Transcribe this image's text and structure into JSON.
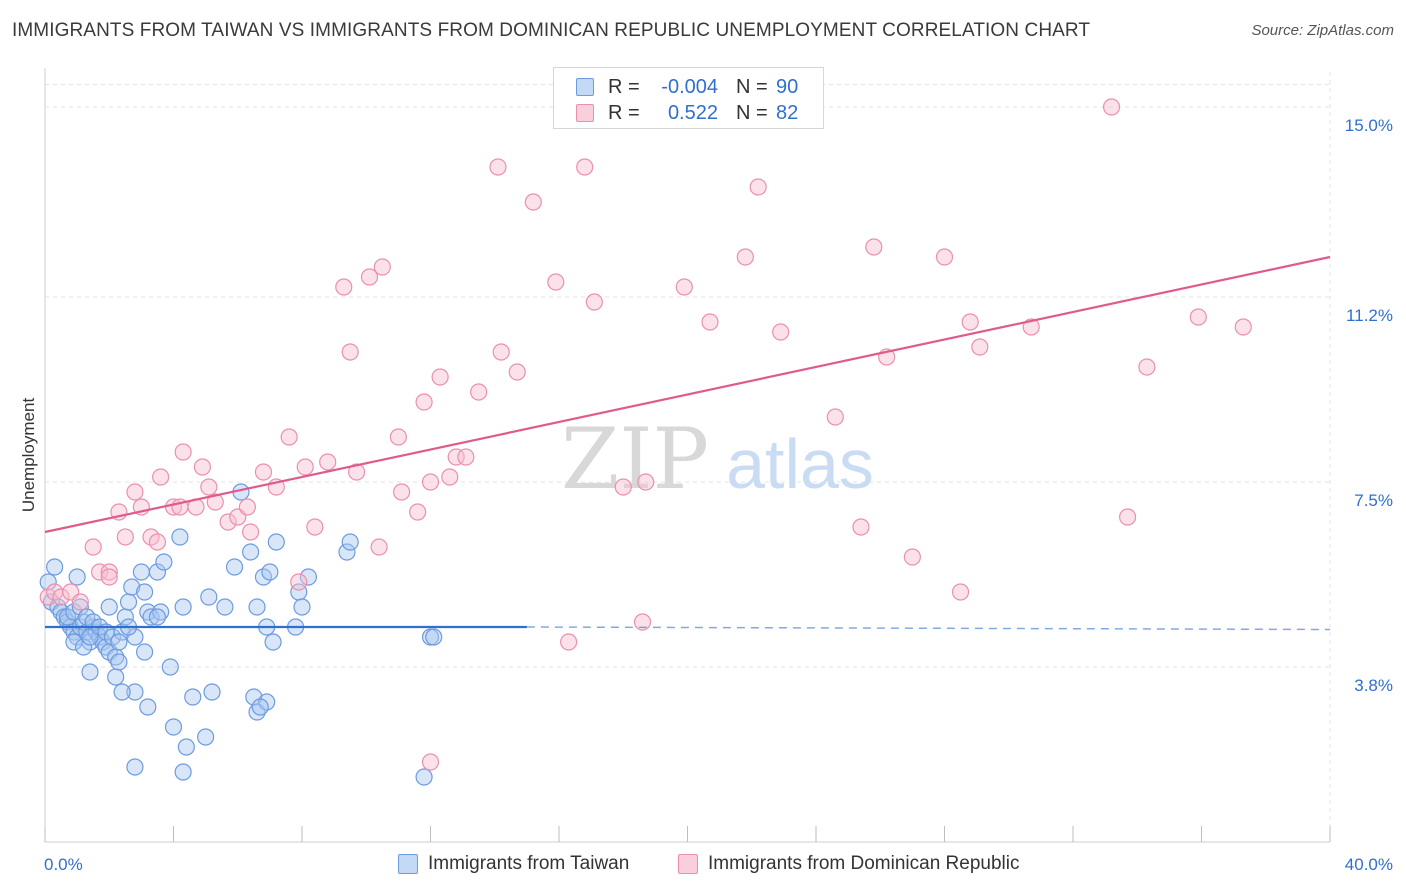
{
  "header": {
    "title": "IMMIGRANTS FROM TAIWAN VS IMMIGRANTS FROM DOMINICAN REPUBLIC UNEMPLOYMENT CORRELATION CHART",
    "source": "Source: ZipAtlas.com"
  },
  "watermark": {
    "zip": "ZIP",
    "atlas": "atlas"
  },
  "legend": {
    "rows": [
      {
        "r_label": "R =",
        "r_value": "-0.004",
        "n_label": "N =",
        "n_value": "90"
      },
      {
        "r_label": "R =",
        "r_value": "0.522",
        "n_label": "N =",
        "n_value": "82"
      }
    ]
  },
  "colors": {
    "taiwan_fill": "#a9c8f0",
    "taiwan_stroke": "#6c9be0",
    "taiwan_line": "#2f6fd0",
    "dr_fill": "#f6bfd0",
    "dr_stroke": "#eb8fae",
    "dr_line": "#e05a8d",
    "tick_label": "#2f6fd0",
    "grid": "#e3e3e3"
  },
  "chart_data": {
    "type": "scatter",
    "title": "IMMIGRANTS FROM TAIWAN VS IMMIGRANTS FROM DOMINICAN REPUBLIC UNEMPLOYMENT CORRELATION CHART",
    "xlabel": "",
    "ylabel": "Unemployment",
    "xlim": [
      0,
      40
    ],
    "ylim": [
      0.3,
      15.7
    ],
    "x_tick_labels": [
      "0.0%",
      "40.0%"
    ],
    "y_ticks": [
      3.8,
      7.5,
      11.2,
      15.0
    ],
    "y_tick_labels": [
      "3.8%",
      "7.5%",
      "11.2%",
      "15.0%"
    ],
    "grid": true,
    "legend_position": "top-center",
    "series": [
      {
        "name": "Immigrants from Taiwan",
        "color": "#6c9be0",
        "trend": {
          "x0": 0,
          "y0": 4.6,
          "x1": 15,
          "y1": 4.6,
          "dashed_to_x": 40,
          "dashed_y": 4.55
        },
        "points": [
          [
            0.1,
            5.5
          ],
          [
            0.3,
            5.8
          ],
          [
            0.2,
            5.1
          ],
          [
            0.4,
            5.0
          ],
          [
            0.5,
            4.9
          ],
          [
            0.6,
            4.8
          ],
          [
            0.7,
            4.7
          ],
          [
            0.8,
            4.6
          ],
          [
            0.9,
            4.5
          ],
          [
            1.0,
            4.4
          ],
          [
            1.1,
            4.6
          ],
          [
            1.2,
            4.7
          ],
          [
            1.3,
            4.5
          ],
          [
            1.4,
            4.3
          ],
          [
            1.5,
            4.6
          ],
          [
            1.6,
            4.5
          ],
          [
            1.7,
            4.4
          ],
          [
            1.8,
            4.3
          ],
          [
            1.9,
            4.2
          ],
          [
            2.0,
            4.1
          ],
          [
            0.9,
            4.3
          ],
          [
            1.2,
            4.2
          ],
          [
            1.4,
            4.4
          ],
          [
            0.7,
            4.8
          ],
          [
            0.9,
            4.9
          ],
          [
            1.1,
            5.0
          ],
          [
            1.3,
            4.8
          ],
          [
            1.5,
            4.7
          ],
          [
            1.7,
            4.6
          ],
          [
            1.9,
            4.5
          ],
          [
            2.1,
            4.4
          ],
          [
            2.2,
            4.0
          ],
          [
            2.3,
            3.9
          ],
          [
            2.4,
            4.5
          ],
          [
            2.5,
            4.8
          ],
          [
            2.6,
            5.1
          ],
          [
            2.7,
            5.4
          ],
          [
            2.8,
            4.4
          ],
          [
            3.0,
            5.7
          ],
          [
            3.1,
            5.3
          ],
          [
            2.0,
            5.0
          ],
          [
            2.2,
            3.6
          ],
          [
            2.3,
            4.3
          ],
          [
            1.4,
            3.7
          ],
          [
            2.6,
            4.6
          ],
          [
            3.2,
            4.9
          ],
          [
            3.3,
            4.8
          ],
          [
            3.5,
            5.7
          ],
          [
            3.6,
            4.9
          ],
          [
            3.7,
            5.9
          ],
          [
            3.1,
            4.1
          ],
          [
            3.9,
            3.8
          ],
          [
            3.5,
            4.8
          ],
          [
            4.2,
            6.4
          ],
          [
            4.3,
            5.0
          ],
          [
            4.6,
            3.2
          ],
          [
            5.1,
            5.2
          ],
          [
            5.2,
            3.3
          ],
          [
            5.6,
            5.0
          ],
          [
            5.9,
            5.8
          ],
          [
            6.1,
            7.3
          ],
          [
            6.4,
            6.1
          ],
          [
            6.6,
            5.0
          ],
          [
            6.5,
            3.2
          ],
          [
            6.6,
            2.9
          ],
          [
            6.9,
            3.1
          ],
          [
            6.8,
            5.6
          ],
          [
            6.9,
            4.6
          ],
          [
            7.0,
            5.7
          ],
          [
            7.1,
            4.3
          ],
          [
            7.2,
            6.3
          ],
          [
            7.9,
            5.3
          ],
          [
            8.0,
            5.0
          ],
          [
            8.2,
            5.6
          ],
          [
            7.8,
            4.6
          ],
          [
            9.4,
            6.1
          ],
          [
            9.5,
            6.3
          ],
          [
            12.0,
            4.4
          ],
          [
            12.1,
            4.4
          ],
          [
            11.8,
            1.6
          ],
          [
            2.8,
            3.3
          ],
          [
            3.2,
            3.0
          ],
          [
            4.0,
            2.6
          ],
          [
            4.4,
            2.2
          ],
          [
            5.0,
            2.4
          ],
          [
            4.3,
            1.7
          ],
          [
            2.8,
            1.8
          ],
          [
            2.4,
            3.3
          ],
          [
            6.7,
            3.0
          ],
          [
            1.0,
            5.6
          ]
        ]
      },
      {
        "name": "Immigrants from Dominican Republic",
        "color": "#eb8fae",
        "trend": {
          "x0": 0,
          "y0": 6.5,
          "x1": 40,
          "y1": 12.0
        },
        "points": [
          [
            0.1,
            5.2
          ],
          [
            0.3,
            5.3
          ],
          [
            0.5,
            5.2
          ],
          [
            0.8,
            5.3
          ],
          [
            1.1,
            5.1
          ],
          [
            1.5,
            6.2
          ],
          [
            1.7,
            5.7
          ],
          [
            2.0,
            5.7
          ],
          [
            2.3,
            6.9
          ],
          [
            2.5,
            6.4
          ],
          [
            2.8,
            7.3
          ],
          [
            3.0,
            7.0
          ],
          [
            3.3,
            6.4
          ],
          [
            3.5,
            6.3
          ],
          [
            3.6,
            7.6
          ],
          [
            4.0,
            7.0
          ],
          [
            4.3,
            8.1
          ],
          [
            4.7,
            7.0
          ],
          [
            4.9,
            7.8
          ],
          [
            5.1,
            7.4
          ],
          [
            5.3,
            7.1
          ],
          [
            5.7,
            6.7
          ],
          [
            6.0,
            6.8
          ],
          [
            6.3,
            7.0
          ],
          [
            6.4,
            6.5
          ],
          [
            6.8,
            7.7
          ],
          [
            7.2,
            7.4
          ],
          [
            7.6,
            8.4
          ],
          [
            7.9,
            5.5
          ],
          [
            8.1,
            7.8
          ],
          [
            8.4,
            6.6
          ],
          [
            8.8,
            7.9
          ],
          [
            9.3,
            11.4
          ],
          [
            9.5,
            10.1
          ],
          [
            9.7,
            7.7
          ],
          [
            10.1,
            11.6
          ],
          [
            10.4,
            6.2
          ],
          [
            10.5,
            11.8
          ],
          [
            11.0,
            8.4
          ],
          [
            11.1,
            7.3
          ],
          [
            11.6,
            6.9
          ],
          [
            11.8,
            9.1
          ],
          [
            12.0,
            7.5
          ],
          [
            12.3,
            9.6
          ],
          [
            12.6,
            7.6
          ],
          [
            12.8,
            8.0
          ],
          [
            13.1,
            8.0
          ],
          [
            13.5,
            9.3
          ],
          [
            14.1,
            13.8
          ],
          [
            14.2,
            10.1
          ],
          [
            14.7,
            9.7
          ],
          [
            15.2,
            13.1
          ],
          [
            15.9,
            11.5
          ],
          [
            16.3,
            4.3
          ],
          [
            16.8,
            13.8
          ],
          [
            17.1,
            11.1
          ],
          [
            18.0,
            7.4
          ],
          [
            18.6,
            4.7
          ],
          [
            18.7,
            7.5
          ],
          [
            19.9,
            11.4
          ],
          [
            20.7,
            10.7
          ],
          [
            21.8,
            12.0
          ],
          [
            22.2,
            13.4
          ],
          [
            22.9,
            10.5
          ],
          [
            24.6,
            8.8
          ],
          [
            25.4,
            6.6
          ],
          [
            25.8,
            12.2
          ],
          [
            26.2,
            10.0
          ],
          [
            27.0,
            6.0
          ],
          [
            28.0,
            12.0
          ],
          [
            28.5,
            5.3
          ],
          [
            28.8,
            10.7
          ],
          [
            29.1,
            10.2
          ],
          [
            30.7,
            10.6
          ],
          [
            33.2,
            15.0
          ],
          [
            33.7,
            6.8
          ],
          [
            34.3,
            9.8
          ],
          [
            35.9,
            10.8
          ],
          [
            37.3,
            10.6
          ],
          [
            12.0,
            1.9
          ],
          [
            2.0,
            5.6
          ],
          [
            4.2,
            7.0
          ]
        ]
      }
    ]
  },
  "bottom_legend": {
    "items": [
      {
        "label": "Immigrants from Taiwan"
      },
      {
        "label": "Immigrants from Dominican Republic"
      }
    ]
  }
}
